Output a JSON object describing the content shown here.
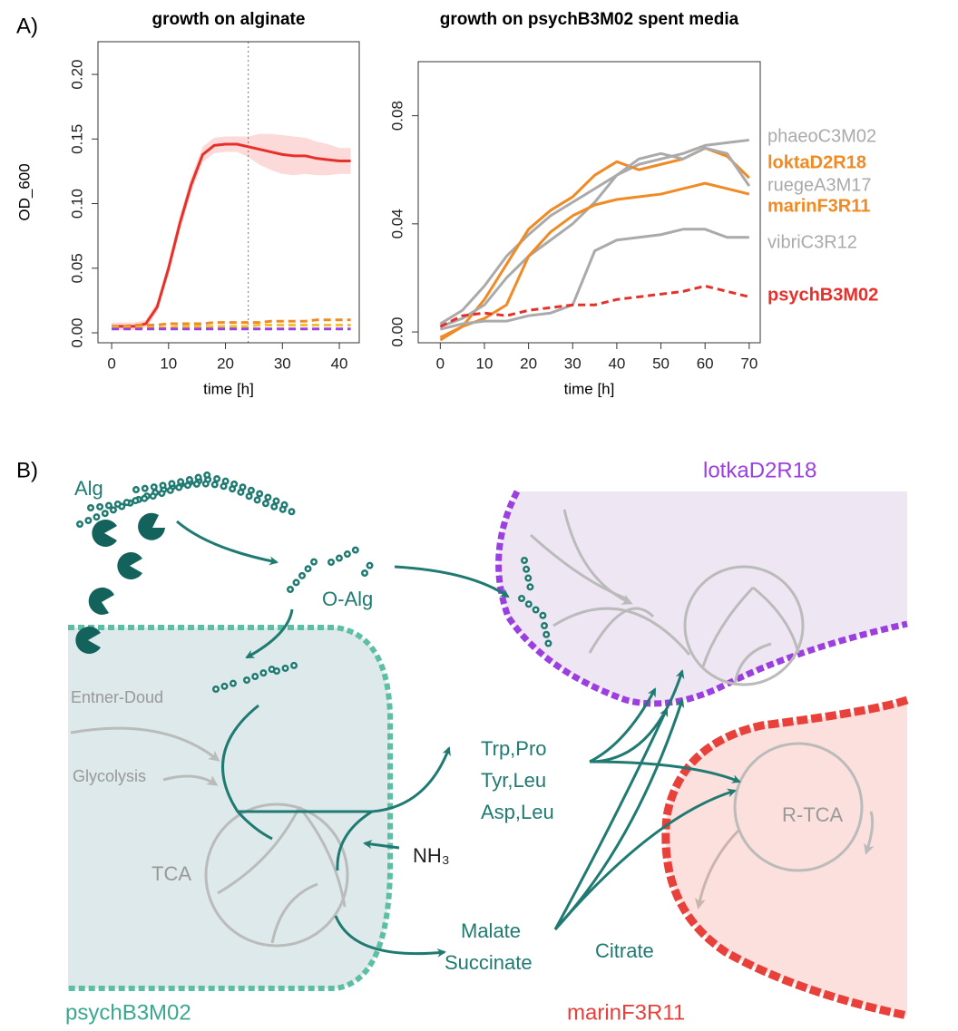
{
  "panel_labels": [
    "A)",
    "B)"
  ],
  "chart_data": [
    {
      "type": "line",
      "title": "growth on alginate",
      "xlabel": "time [h]",
      "ylabel": "OD_600",
      "x": [
        0,
        2,
        4,
        6,
        8,
        10,
        12,
        14,
        16,
        18,
        20,
        22,
        24,
        26,
        28,
        30,
        32,
        34,
        36,
        38,
        40,
        42
      ],
      "xlim": [
        -2.4,
        43.5
      ],
      "xticks": [
        0,
        10,
        20,
        30,
        40
      ],
      "ylim": [
        -0.0077,
        0.2253
      ],
      "yticks": [
        {
          "value": 0,
          "label": "0.00"
        },
        {
          "value": 0.05,
          "label": "0.05"
        },
        {
          "value": 0.1,
          "label": "0.10"
        },
        {
          "value": 0.15,
          "label": "0.15"
        },
        {
          "value": 0.2,
          "label": "0.20"
        }
      ],
      "vline": 24,
      "series": [
        {
          "color": "#e8302b",
          "dashed": false,
          "values": [
            0.005,
            0.005,
            0.005,
            0.007,
            0.02,
            0.05,
            0.085,
            0.115,
            0.138,
            0.145,
            0.146,
            0.146,
            0.144,
            0.142,
            0.14,
            0.138,
            0.137,
            0.137,
            0.135,
            0.134,
            0.133,
            0.133
          ],
          "error": [
            0.003,
            0.003,
            0.003,
            0.003,
            0.004,
            0.005,
            0.006,
            0.006,
            0.006,
            0.006,
            0.006,
            0.006,
            0.008,
            0.012,
            0.014,
            0.015,
            0.015,
            0.014,
            0.013,
            0.012,
            0.01,
            0.01
          ]
        },
        {
          "color": "#f08a24",
          "dashed": true,
          "values": [
            0.005,
            0.005,
            0.006,
            0.006,
            0.006,
            0.007,
            0.007,
            0.007,
            0.007,
            0.008,
            0.008,
            0.008,
            0.008,
            0.008,
            0.009,
            0.009,
            0.009,
            0.009,
            0.01,
            0.01,
            0.01,
            0.01
          ]
        },
        {
          "color": "#f2c12e",
          "dashed": true,
          "values": [
            0.004,
            0.004,
            0.004,
            0.004,
            0.004,
            0.004,
            0.005,
            0.005,
            0.005,
            0.005,
            0.005,
            0.005,
            0.005,
            0.006,
            0.006,
            0.006,
            0.006,
            0.006,
            0.006,
            0.006,
            0.006,
            0.006
          ]
        },
        {
          "color": "#9b3fe0",
          "dashed": true,
          "values": [
            0.003,
            0.003,
            0.003,
            0.003,
            0.003,
            0.003,
            0.003,
            0.003,
            0.003,
            0.003,
            0.003,
            0.003,
            0.003,
            0.003,
            0.003,
            0.003,
            0.003,
            0.003,
            0.003,
            0.003,
            0.003,
            0.003
          ]
        }
      ]
    },
    {
      "type": "line",
      "title": "growth on psychB3M02 spent media",
      "xlabel": "time [h]",
      "x": [
        0,
        5,
        10,
        15,
        20,
        25,
        30,
        35,
        40,
        45,
        50,
        55,
        60,
        65,
        70
      ],
      "xlim": [
        -5,
        72.5
      ],
      "xticks": [
        0,
        10,
        20,
        30,
        40,
        50,
        60,
        70
      ],
      "ylim": [
        -0.004,
        0.1
      ],
      "yticks": [
        {
          "value": 0,
          "label": "0.00"
        },
        {
          "value": 0.04,
          "label": "0.04"
        },
        {
          "value": 0.08,
          "label": "0.08"
        }
      ],
      "series": [
        {
          "name": "phaeoC3M02",
          "color": "#aaaaaa",
          "dashed": false,
          "bold": false,
          "values": [
            0.003,
            0.008,
            0.017,
            0.028,
            0.036,
            0.043,
            0.048,
            0.053,
            0.058,
            0.062,
            0.064,
            0.066,
            0.069,
            0.07,
            0.071
          ]
        },
        {
          "name": "loktaD2R18",
          "color": "#f08a24",
          "dashed": false,
          "bold": true,
          "values": [
            -0.003,
            0.002,
            0.012,
            0.025,
            0.038,
            0.045,
            0.05,
            0.058,
            0.063,
            0.06,
            0.062,
            0.064,
            0.068,
            0.065,
            0.057
          ]
        },
        {
          "name": "ruegeA3M17",
          "color": "#aaaaaa",
          "dashed": false,
          "bold": false,
          "values": [
            0.002,
            0.005,
            0.01,
            0.02,
            0.028,
            0.034,
            0.04,
            0.048,
            0.058,
            0.064,
            0.066,
            0.064,
            0.068,
            0.066,
            0.054
          ]
        },
        {
          "name": "marinF3R11",
          "color": "#f08a24",
          "dashed": false,
          "bold": true,
          "values": [
            -0.002,
            0.002,
            0.005,
            0.01,
            0.028,
            0.037,
            0.043,
            0.047,
            0.049,
            0.05,
            0.051,
            0.053,
            0.055,
            0.053,
            0.051
          ]
        },
        {
          "name": "vibriC3R12",
          "color": "#aaaaaa",
          "dashed": false,
          "bold": false,
          "values": [
            0.001,
            0.003,
            0.004,
            0.004,
            0.006,
            0.007,
            0.01,
            0.03,
            0.034,
            0.035,
            0.036,
            0.038,
            0.038,
            0.035,
            0.035
          ]
        },
        {
          "name": "psychB3M02",
          "color": "#e8302b",
          "dashed": true,
          "bold": true,
          "values": [
            0.002,
            0.006,
            0.007,
            0.006,
            0.008,
            0.009,
            0.01,
            0.01,
            0.012,
            0.013,
            0.014,
            0.015,
            0.017,
            0.015,
            0.013
          ]
        }
      ]
    }
  ],
  "diagram": {
    "substrate": "Alg",
    "oligomer": "O-Alg",
    "pathways": [
      "Entner-Doud",
      "Glycolysis",
      "TCA",
      "R-TCA"
    ],
    "ammonia": "NH₃",
    "amino_acids": [
      "Trp,Pro",
      "Tyr,Leu",
      "Asp,Leu"
    ],
    "acids": [
      "Malate",
      "Succinate"
    ],
    "citrate": "Citrate",
    "cells": [
      "psychB3M02",
      "lotkaD2R18",
      "marinF3R11"
    ]
  }
}
